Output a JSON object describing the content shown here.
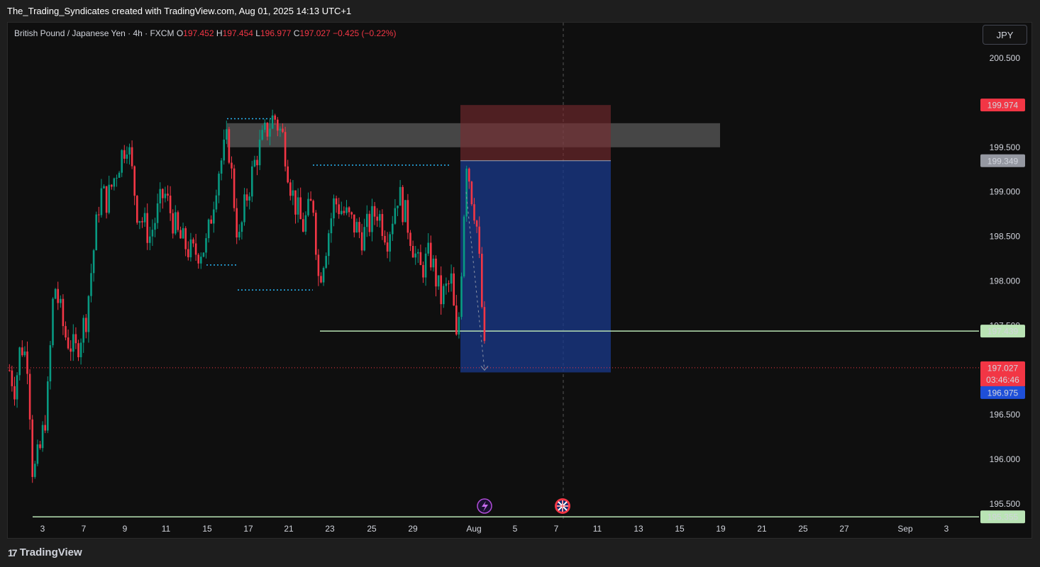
{
  "header": {
    "credit": "The_Trading_Syndicates created with TradingView.com, Aug 01, 2025 14:13 UTC+1"
  },
  "legend": {
    "symbol": "British Pound / Japanese Yen · 4h · FXCM",
    "open_label": "O",
    "open": "197.452",
    "high_label": "H",
    "high": "197.454",
    "low_label": "L",
    "low": "196.977",
    "close_label": "C",
    "close": "197.027",
    "change": "−0.425 (−0.22%)"
  },
  "toolbar": {
    "currency": "JPY"
  },
  "footer": {
    "logo_text": "TradingView"
  },
  "colors": {
    "up": "#089981",
    "down": "#f23645",
    "bg": "#0f0f0f",
    "short_target": "#1a3a8c",
    "short_stop": "#7a2a2f",
    "zone": "#8a8a8a",
    "level_line": "#b9e3b4",
    "dotted_levels": "#29b6f6"
  },
  "chart_data": {
    "type": "candlestick",
    "symbol": "GBPJPY",
    "timeframe": "4h",
    "y_ticks": [
      "200.500",
      "199.500",
      "199.000",
      "198.500",
      "198.000",
      "197.500",
      "196.500",
      "196.000",
      "195.500"
    ],
    "ylim": [
      195.3,
      200.8
    ],
    "x_ticks": [
      "3",
      "7",
      "9",
      "11",
      "15",
      "17",
      "21",
      "23",
      "25",
      "29",
      "Aug",
      "5",
      "7",
      "11",
      "13",
      "15",
      "19",
      "21",
      "25",
      "27",
      "Sep",
      "3"
    ],
    "price_labels": [
      {
        "value": "199.974",
        "role": "stop-loss"
      },
      {
        "value": "199.349",
        "role": "entry"
      },
      {
        "value": "197.439",
        "role": "horizontal-level"
      },
      {
        "value": "197.027",
        "role": "last-price"
      },
      {
        "value": "03:46:46",
        "role": "bar-countdown"
      },
      {
        "value": "196.975",
        "role": "take-profit"
      },
      {
        "value": "195.355",
        "role": "horizontal-level"
      }
    ],
    "levels": {
      "supply_zone": [
        199.5,
        199.77
      ],
      "horizontal_1": 197.439,
      "horizontal_2": 195.355,
      "last_price": 197.027
    },
    "short_position": {
      "entry": 199.349,
      "stop": 199.974,
      "target": 196.975
    },
    "last_ohlc": {
      "open": 197.452,
      "high": 197.454,
      "low": 196.977,
      "close": 197.027
    },
    "events": [
      "lightning-event-icon",
      "uk-flag-event-icon"
    ]
  }
}
